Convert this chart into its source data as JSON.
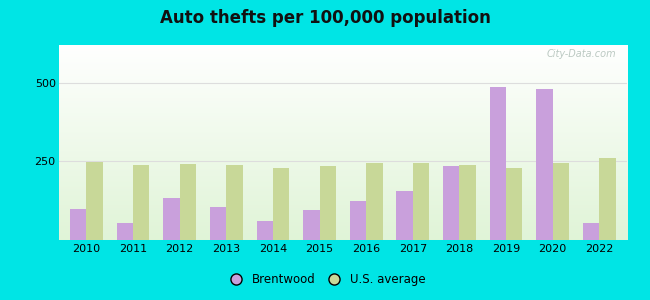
{
  "title": "Auto thefts per 100,000 population",
  "years": [
    2010,
    2011,
    2012,
    2013,
    2014,
    2015,
    2016,
    2017,
    2018,
    2019,
    2020,
    2022
  ],
  "brentwood": [
    100,
    55,
    135,
    105,
    60,
    95,
    125,
    155,
    235,
    485,
    480,
    55
  ],
  "us_average": [
    248,
    240,
    243,
    237,
    228,
    236,
    245,
    244,
    239,
    228,
    246,
    262
  ],
  "brentwood_color": "#c9a0dc",
  "us_avg_color": "#c8d898",
  "outer_bg": "#00e5e5",
  "ylim": [
    0,
    620
  ],
  "yticks": [
    250,
    500
  ],
  "bar_width": 0.35,
  "legend_labels": [
    "Brentwood",
    "U.S. average"
  ],
  "watermark": "City-Data.com",
  "grid_color": "#dddddd",
  "bg_top_color": "#f0fae8",
  "bg_bottom_color": "#ffffff"
}
